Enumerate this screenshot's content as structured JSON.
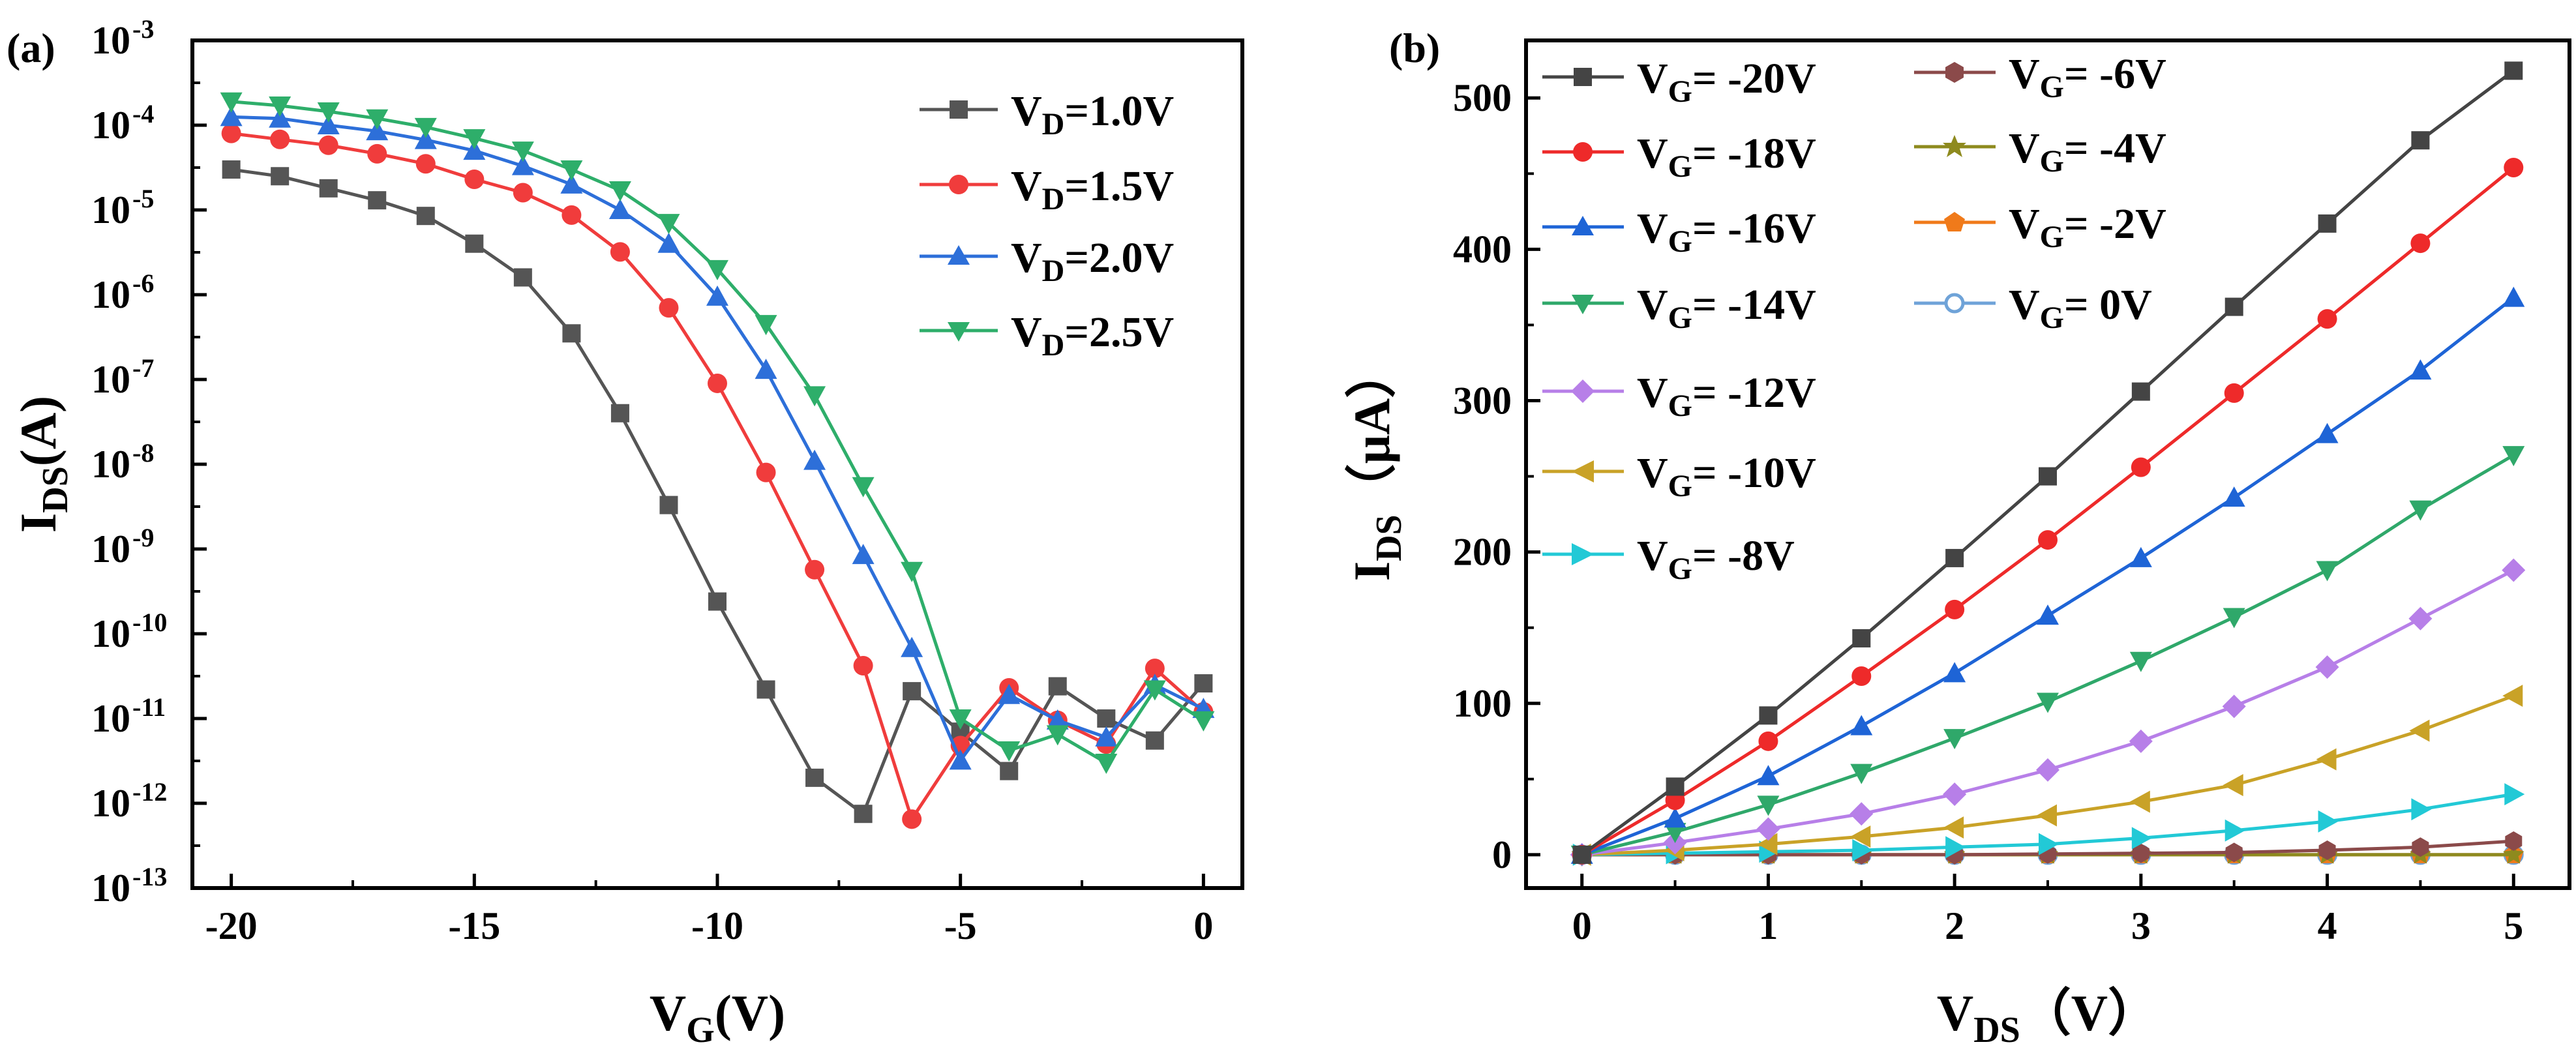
{
  "chart_data": [
    {
      "type": "line",
      "panel_label": "(a)",
      "yscale": "log",
      "xlabel": {
        "main": "V",
        "sub": "G",
        "rest": "(V)"
      },
      "ylabel": {
        "main": "I",
        "sub": "DS",
        "rest": "(A)"
      },
      "xlim": [
        -20.8,
        0.8
      ],
      "ylim_exp": [
        -13,
        -3
      ],
      "xticks": [
        -20,
        -15,
        -10,
        -5,
        0
      ],
      "xtick_labels": [
        "-20",
        "-15",
        "-10",
        "-5",
        "0"
      ],
      "yticks_exp": [
        -13,
        -12,
        -11,
        -10,
        -9,
        -8,
        -7,
        -6,
        -5,
        -4,
        -3
      ],
      "ytick_base": "10",
      "ytick_sup_labels": [
        "-13",
        "-12",
        "-11",
        "-10",
        "-9",
        "-8",
        "-7",
        "-6",
        "-5",
        "-4",
        "-3"
      ],
      "legend_position": "top-right",
      "x": [
        -20,
        -19,
        -18,
        -17,
        -16,
        -15,
        -14,
        -13,
        -12,
        -11,
        -10,
        -9,
        -8,
        -7,
        -6,
        -5,
        -4,
        -3,
        -2,
        -1,
        0
      ],
      "series": [
        {
          "legend_main": "V",
          "legend_sub": "D",
          "legend_rest": "=1.0V",
          "color": "#555555",
          "marker": "square",
          "values": [
            3e-05,
            2.5e-05,
            1.8e-05,
            1.3e-05,
            8.5e-06,
            4e-06,
            1.6e-06,
            3.5e-07,
            4e-08,
            3.3e-09,
            2.4e-10,
            2.2e-11,
            2e-12,
            7.5e-13,
            2.1e-11,
            7e-12,
            2.4e-12,
            2.4e-11,
            1e-11,
            5.5e-12,
            2.6e-11
          ]
        },
        {
          "legend_main": "V",
          "legend_sub": "D",
          "legend_rest": "=1.5V",
          "color": "#f03c3c",
          "marker": "circle",
          "values": [
            8e-05,
            6.8e-05,
            5.8e-05,
            4.6e-05,
            3.5e-05,
            2.3e-05,
            1.6e-05,
            8.7e-06,
            3.2e-06,
            7e-07,
            9e-08,
            8e-09,
            5.7e-10,
            4.2e-11,
            6.5e-13,
            4.8e-12,
            2.3e-11,
            9.5e-12,
            5e-12,
            3.9e-11,
            1.2e-11
          ]
        },
        {
          "legend_main": "V",
          "legend_sub": "D",
          "legend_rest": "=2.0V",
          "color": "#2d6fd9",
          "marker": "triangle-up",
          "values": [
            0.000125,
            0.00012,
            0.0001,
            8.5e-05,
            6.7e-05,
            5e-05,
            3.3e-05,
            2e-05,
            1e-05,
            4e-06,
            9.5e-07,
            1.3e-07,
            1.1e-08,
            8.5e-10,
            6.8e-11,
            3.2e-12,
            1.9e-11,
            9.5e-12,
            6e-12,
            2.5e-11,
            1.3e-11
          ]
        },
        {
          "legend_main": "V",
          "legend_sub": "D",
          "legend_rest": "=2.5V",
          "color": "#2eae6a",
          "marker": "triangle-down",
          "values": [
            0.00019,
            0.00017,
            0.000145,
            0.00012,
            9.5e-05,
            7e-05,
            5e-05,
            3e-05,
            1.7e-05,
            7e-06,
            2e-06,
            4.5e-07,
            6.5e-08,
            5.5e-09,
            5.5e-10,
            1e-11,
            4.2e-12,
            6.5e-12,
            3e-12,
            2.2e-11,
            9.5e-12
          ]
        }
      ]
    },
    {
      "type": "line",
      "panel_label": "(b)",
      "xlabel": {
        "main": "V",
        "sub": "DS",
        "rest": "（V）"
      },
      "ylabel": {
        "main": "I",
        "sub": "DS",
        "rest": "（μA）"
      },
      "xlim": [
        -0.3,
        5.3
      ],
      "ylim": [
        -22,
        538
      ],
      "xticks": [
        0,
        1,
        2,
        3,
        4,
        5
      ],
      "yticks": [
        0,
        100,
        200,
        300,
        400,
        500
      ],
      "legend_position": "top-left",
      "x": [
        0,
        0.5,
        1,
        1.5,
        2,
        2.5,
        3,
        3.5,
        4,
        4.5,
        5
      ],
      "series": [
        {
          "legend_main": "V",
          "legend_sub": "G",
          "legend_rest": "= -20V",
          "color": "#444444",
          "marker": "square",
          "values": [
            0,
            45,
            92,
            143,
            196,
            250,
            306,
            362,
            417,
            472,
            518
          ]
        },
        {
          "legend_main": "V",
          "legend_sub": "G",
          "legend_rest": "= -18V",
          "color": "#ee2a2a",
          "marker": "circle",
          "values": [
            0,
            36,
            75,
            118,
            162,
            208,
            256,
            305,
            354,
            404,
            454
          ]
        },
        {
          "legend_main": "V",
          "legend_sub": "G",
          "legend_rest": "= -16V",
          "color": "#1e64d6",
          "marker": "triangle-up",
          "values": [
            0,
            24,
            52,
            85,
            120,
            158,
            196,
            236,
            278,
            320,
            368
          ]
        },
        {
          "legend_main": "V",
          "legend_sub": "G",
          "legend_rest": "= -14V",
          "color": "#2fa86a",
          "marker": "triangle-down",
          "values": [
            0,
            15,
            33,
            54,
            77,
            101,
            128,
            157,
            188,
            228,
            264
          ]
        },
        {
          "legend_main": "V",
          "legend_sub": "G",
          "legend_rest": "= -12V",
          "color": "#b77fe8",
          "marker": "diamond",
          "values": [
            0,
            8,
            17,
            27,
            40,
            56,
            75,
            98,
            124,
            156,
            188
          ]
        },
        {
          "legend_main": "V",
          "legend_sub": "G",
          "legend_rest": "= -10V",
          "color": "#c9a227",
          "marker": "triangle-left",
          "values": [
            0,
            3,
            7,
            12,
            18,
            26,
            35,
            46,
            63,
            82,
            105
          ]
        },
        {
          "legend_main": "V",
          "legend_sub": "G",
          "legend_rest": "= -8V",
          "color": "#22c9d6",
          "marker": "triangle-right",
          "values": [
            0,
            1,
            2,
            3,
            5,
            7,
            11,
            16,
            22,
            30,
            40
          ]
        },
        {
          "legend_main": "V",
          "legend_sub": "G",
          "legend_rest": "= -6V",
          "color": "#8b4a4a",
          "marker": "hexagon",
          "values": [
            0,
            0,
            0,
            0,
            0,
            0.5,
            1,
            1.5,
            3,
            5,
            9
          ]
        },
        {
          "legend_main": "V",
          "legend_sub": "G",
          "legend_rest": "= -4V",
          "color": "#8e8a1e",
          "marker": "star",
          "values": [
            0,
            0,
            0,
            0,
            0,
            0,
            0,
            0,
            0,
            0,
            0
          ]
        },
        {
          "legend_main": "V",
          "legend_sub": "G",
          "legend_rest": "= -2V",
          "color": "#f07a1a",
          "marker": "pentagon",
          "values": [
            0,
            0,
            0,
            0,
            0,
            0,
            0,
            0,
            0,
            0,
            0
          ]
        },
        {
          "legend_main": "V",
          "legend_sub": "G",
          "legend_rest": "= 0V",
          "color": "#6fa3d8",
          "marker": "circle-open",
          "values": [
            0,
            0,
            0,
            0,
            0,
            0,
            0,
            0,
            0,
            0,
            0
          ]
        }
      ]
    }
  ]
}
